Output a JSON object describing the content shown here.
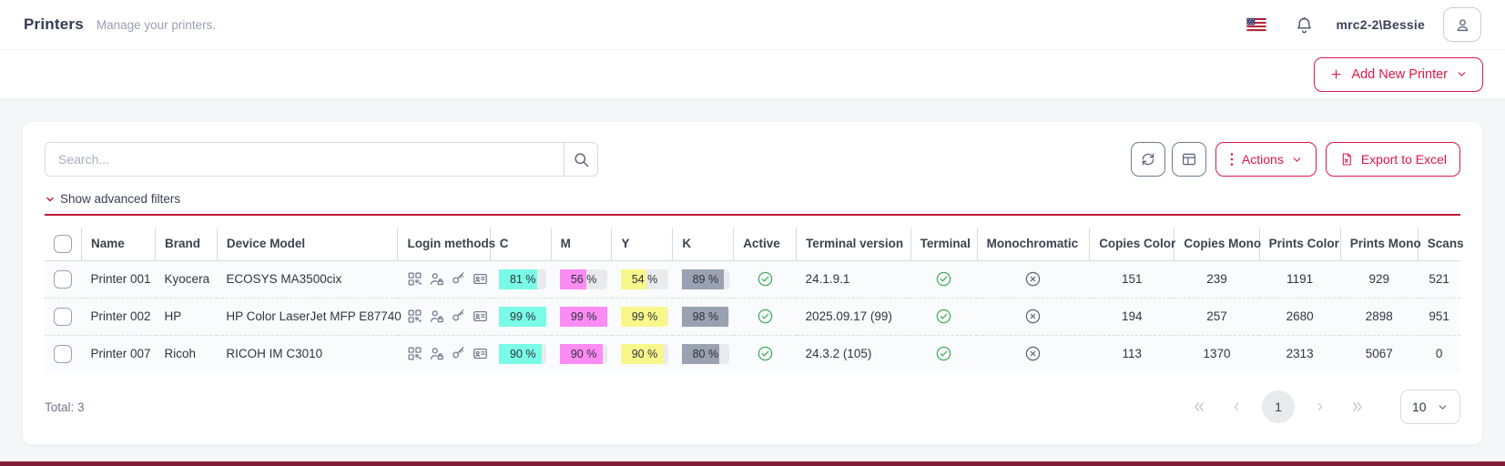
{
  "header": {
    "title": "Printers",
    "subtitle": "Manage your printers.",
    "username": "mrc2-2\\Bessie"
  },
  "actionbar": {
    "add_label": "Add New Printer"
  },
  "toolbar": {
    "search_placeholder": "Search...",
    "actions_label": "Actions",
    "export_label": "Export to Excel",
    "filters_label": "Show advanced filters"
  },
  "table": {
    "columns": [
      "Name",
      "Brand",
      "Device Model",
      "Login methods",
      "C",
      "M",
      "Y",
      "K",
      "Active",
      "Terminal version",
      "Terminal",
      "Monochromatic",
      "Copies Color",
      "Copies Mono",
      "Prints Color",
      "Prints Mono",
      "Scans"
    ],
    "login_methods": [
      "qr-code",
      "user-lock",
      "key",
      "id-card"
    ],
    "rows": [
      {
        "name": "Printer 001",
        "brand": "Kyocera",
        "model": "ECOSYS MA3500cix",
        "c": 81,
        "m": 56,
        "y": 54,
        "k": 89,
        "active": true,
        "terminal_version": "24.1.9.1",
        "terminal": true,
        "monochromatic": false,
        "copies_color": 151,
        "copies_mono": 239,
        "prints_color": 1191,
        "prints_mono": 929,
        "scans": 521
      },
      {
        "name": "Printer 002",
        "brand": "HP",
        "model": "HP Color LaserJet MFP E87740",
        "c": 99,
        "m": 99,
        "y": 99,
        "k": 98,
        "active": true,
        "terminal_version": "2025.09.17 (99)",
        "terminal": true,
        "monochromatic": false,
        "copies_color": 194,
        "copies_mono": 257,
        "prints_color": 2680,
        "prints_mono": 2898,
        "scans": 951
      },
      {
        "name": "Printer 007",
        "brand": "Ricoh",
        "model": "RICOH IM C3010",
        "c": 90,
        "m": 90,
        "y": 90,
        "k": 80,
        "active": true,
        "terminal_version": "24.3.2 (105)",
        "terminal": true,
        "monochromatic": false,
        "copies_color": 113,
        "copies_mono": 1370,
        "prints_color": 2313,
        "prints_mono": 5067,
        "scans": 0
      }
    ]
  },
  "footer": {
    "total": "Total: 3",
    "current_page": "1",
    "page_size": "10"
  },
  "colors": {
    "cyan": "#79fbe7",
    "magenta": "#fc8bf3",
    "yellow": "#f9f78c",
    "black": "#9aa2b1",
    "green": "#3fae5a",
    "gray_x": "#5a6271"
  }
}
